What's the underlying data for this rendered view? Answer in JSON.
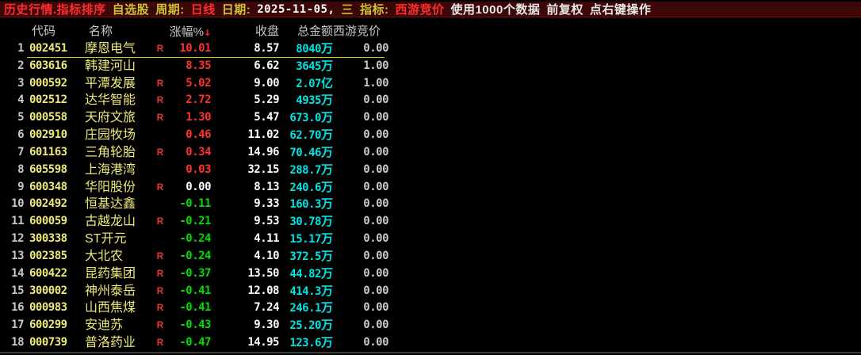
{
  "toolbar": {
    "segments": [
      {
        "name": "view-title",
        "text": "历史行情.指标排序",
        "color": "red",
        "interactable": false
      },
      {
        "name": "watchlist-button",
        "text": "自选股",
        "color": "yellow",
        "interactable": true
      },
      {
        "name": "period-label",
        "text": "周期:",
        "color": "yellow",
        "interactable": true
      },
      {
        "name": "period-value",
        "text": "日线",
        "color": "red",
        "interactable": true
      },
      {
        "name": "date-label",
        "text": "日期:",
        "color": "yellow",
        "interactable": true
      },
      {
        "name": "date-value",
        "text": "2025-11-05,",
        "color": "white-bold",
        "interactable": true
      },
      {
        "name": "weekday-value",
        "text": "三",
        "color": "yellow",
        "interactable": false
      },
      {
        "name": "indicator-label",
        "text": "指标:",
        "color": "yellow",
        "interactable": true
      },
      {
        "name": "indicator-value",
        "text": "西游竞价",
        "color": "red",
        "interactable": true
      },
      {
        "name": "data-count-status",
        "text": "使用1000个数据",
        "color": "white",
        "interactable": false
      },
      {
        "name": "adjust-mode",
        "text": "前复权",
        "color": "white",
        "interactable": true
      },
      {
        "name": "right-click-hint",
        "text": "点右键操作",
        "color": "white",
        "interactable": false
      }
    ]
  },
  "table": {
    "columns": {
      "code": "代码",
      "name": "名称",
      "change": "涨幅%",
      "close": "收盘",
      "amount": "总金额",
      "bid": "西游竞价"
    },
    "sort_arrow": "↓",
    "selected_index": 0,
    "rows": [
      {
        "idx": "1",
        "code": "002451",
        "name": "摩恩电气",
        "r": "R",
        "change": "10.01",
        "close": "8.57",
        "amount": "8040万",
        "bid": "0.00"
      },
      {
        "idx": "2",
        "code": "603616",
        "name": "韩建河山",
        "r": "",
        "change": "8.35",
        "close": "6.62",
        "amount": "3645万",
        "bid": "1.00"
      },
      {
        "idx": "3",
        "code": "000592",
        "name": "平潭发展",
        "r": "R",
        "change": "5.02",
        "close": "9.00",
        "amount": "2.07亿",
        "bid": "1.00"
      },
      {
        "idx": "4",
        "code": "002512",
        "name": "达华智能",
        "r": "R",
        "change": "2.72",
        "close": "5.29",
        "amount": "4935万",
        "bid": "0.00"
      },
      {
        "idx": "5",
        "code": "000558",
        "name": "天府文旅",
        "r": "R",
        "change": "1.30",
        "close": "5.47",
        "amount": "673.0万",
        "bid": "0.00"
      },
      {
        "idx": "6",
        "code": "002910",
        "name": "庄园牧场",
        "r": "",
        "change": "0.46",
        "close": "11.02",
        "amount": "62.70万",
        "bid": "0.00"
      },
      {
        "idx": "7",
        "code": "601163",
        "name": "三角轮胎",
        "r": "R",
        "change": "0.34",
        "close": "14.96",
        "amount": "70.46万",
        "bid": "0.00"
      },
      {
        "idx": "8",
        "code": "605598",
        "name": "上海港湾",
        "r": "",
        "change": "0.03",
        "close": "32.15",
        "amount": "288.7万",
        "bid": "0.00"
      },
      {
        "idx": "9",
        "code": "600348",
        "name": "华阳股份",
        "r": "R",
        "change": "0.00",
        "close": "8.13",
        "amount": "240.6万",
        "bid": "0.00"
      },
      {
        "idx": "10",
        "code": "002492",
        "name": "恒基达鑫",
        "r": "",
        "change": "-0.11",
        "close": "9.33",
        "amount": "160.3万",
        "bid": "0.00"
      },
      {
        "idx": "11",
        "code": "600059",
        "name": "古越龙山",
        "r": "R",
        "change": "-0.21",
        "close": "9.53",
        "amount": "30.78万",
        "bid": "0.00"
      },
      {
        "idx": "12",
        "code": "300338",
        "name": "ST开元",
        "r": "",
        "change": "-0.24",
        "close": "4.11",
        "amount": "15.17万",
        "bid": "0.00"
      },
      {
        "idx": "13",
        "code": "002385",
        "name": "大北农",
        "r": "R",
        "change": "-0.24",
        "close": "4.10",
        "amount": "372.5万",
        "bid": "0.00"
      },
      {
        "idx": "14",
        "code": "600422",
        "name": "昆药集团",
        "r": "R",
        "change": "-0.37",
        "close": "13.50",
        "amount": "44.82万",
        "bid": "0.00"
      },
      {
        "idx": "15",
        "code": "300002",
        "name": "神州泰岳",
        "r": "R",
        "change": "-0.41",
        "close": "12.08",
        "amount": "414.3万",
        "bid": "0.00"
      },
      {
        "idx": "16",
        "code": "000983",
        "name": "山西焦煤",
        "r": "R",
        "change": "-0.41",
        "close": "7.24",
        "amount": "246.1万",
        "bid": "0.00"
      },
      {
        "idx": "17",
        "code": "600299",
        "name": "安迪苏",
        "r": "R",
        "change": "-0.43",
        "close": "9.30",
        "amount": "25.20万",
        "bid": "0.00"
      },
      {
        "idx": "18",
        "code": "000739",
        "name": "普洛药业",
        "r": "R",
        "change": "-0.47",
        "close": "14.95",
        "amount": "123.6万",
        "bid": "0.00"
      }
    ]
  },
  "colors": {
    "background": "#000000",
    "topbar_bg": "#3D0707",
    "accent_red": "#FF3232",
    "accent_green": "#00DE00",
    "accent_cyan": "#00E4E4",
    "accent_yellow": "#EDE97A",
    "label_yellow": "#CDC235",
    "header_gray": "#C8C8C8",
    "cursor_yellow": "#CFCF00"
  }
}
